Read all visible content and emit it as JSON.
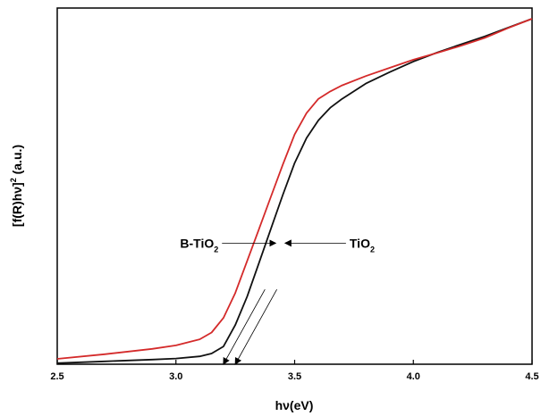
{
  "chart_data": {
    "type": "line",
    "title": "",
    "xlabel": "hν(eV)",
    "ylabel_main": "[f(R)hν]",
    "ylabel_sup": "2",
    "ylabel_rest": " (a.u.)",
    "xlim": [
      2.5,
      4.5
    ],
    "ylim": [
      0,
      100
    ],
    "x_ticks": [
      2.5,
      3.0,
      3.5,
      4.0,
      4.5
    ],
    "x_tick_labels": [
      "2.5",
      "3.0",
      "3.5",
      "4.0",
      "4.5"
    ],
    "y_tick_labels": false,
    "grid": false,
    "legend": "none",
    "series": [
      {
        "key": "b_tio2",
        "color": "#d42a2a",
        "x": [
          2.5,
          2.7,
          2.9,
          3.0,
          3.1,
          3.15,
          3.2,
          3.25,
          3.3,
          3.35,
          3.4,
          3.45,
          3.5,
          3.55,
          3.6,
          3.65,
          3.7,
          3.8,
          3.9,
          4.0,
          4.1,
          4.2,
          4.3,
          4.4,
          4.5
        ],
        "y": [
          1.5,
          2.8,
          4.3,
          5.3,
          7.0,
          8.9,
          13.0,
          20.0,
          29.0,
          38.0,
          47.0,
          56.0,
          64.5,
          70.5,
          74.5,
          76.6,
          78.3,
          80.9,
          83.2,
          85.5,
          87.4,
          89.4,
          91.6,
          94.4,
          97.0
        ]
      },
      {
        "key": "tio2",
        "color": "#111111",
        "x": [
          2.5,
          2.7,
          2.9,
          3.0,
          3.1,
          3.15,
          3.2,
          3.25,
          3.3,
          3.35,
          3.4,
          3.45,
          3.5,
          3.55,
          3.6,
          3.65,
          3.7,
          3.8,
          3.9,
          4.0,
          4.1,
          4.2,
          4.3,
          4.4,
          4.5
        ],
        "y": [
          0.3,
          0.8,
          1.3,
          1.6,
          2.2,
          3.0,
          5.0,
          11.0,
          19.0,
          28.5,
          38.0,
          47.5,
          56.5,
          63.5,
          68.5,
          72.0,
          74.5,
          78.8,
          82.0,
          85.0,
          87.5,
          89.8,
          92.0,
          94.5,
          97.0
        ]
      }
    ],
    "tangents": [
      {
        "key": "b_tio2",
        "x1": 3.2,
        "y1": 0,
        "x2": 3.375,
        "y2": 21
      },
      {
        "key": "tio2",
        "x1": 3.25,
        "y1": 0,
        "x2": 3.425,
        "y2": 21
      }
    ],
    "annotations": [
      {
        "text": "B-TiO",
        "sub": "2",
        "side": "left",
        "x": 3.42,
        "y": 34
      },
      {
        "text": "TiO",
        "sub": "2",
        "side": "right",
        "x": 3.46,
        "y": 34
      }
    ]
  }
}
